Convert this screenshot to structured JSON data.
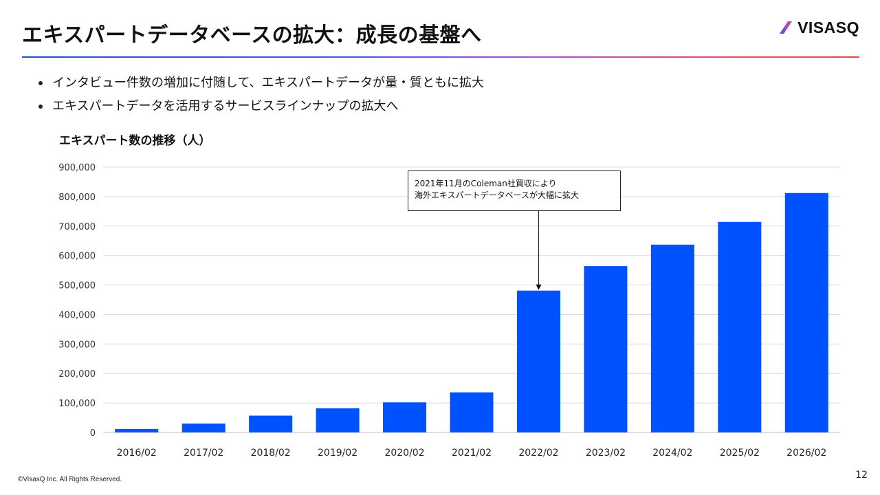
{
  "slide": {
    "title": "エキスパートデータベースの拡大：成長の基盤へ",
    "logo_text": "VISASQ",
    "bullets": [
      "インタビュー件数の増加に付随して、エキスパートデータが量・質ともに拡大",
      "エキスパートデータを活用するサービスラインナップの拡大へ"
    ],
    "copyright": "©VisasQ Inc. All Rights Reserved.",
    "page_number": "12"
  },
  "callout": {
    "line1": "2021年11月のColeman社買収により",
    "line2": "海外エキスパートデータベースが大幅に拡大",
    "target_category": "2022/02"
  },
  "colors": {
    "bar": "#0052ff",
    "grid": "#d9d9d9",
    "axis_text": "#333333"
  },
  "chart_data": {
    "type": "bar",
    "title": "エキスパート数の推移（人）",
    "xlabel": "",
    "ylabel": "",
    "categories": [
      "2016/02",
      "2017/02",
      "2018/02",
      "2019/02",
      "2020/02",
      "2021/02",
      "2022/02",
      "2023/02",
      "2024/02",
      "2025/02",
      "2026/02"
    ],
    "values": [
      12000,
      30000,
      57000,
      82000,
      102000,
      136000,
      481000,
      564000,
      637000,
      714000,
      812000
    ],
    "ylim": [
      0,
      900000
    ],
    "yticks": [
      0,
      100000,
      200000,
      300000,
      400000,
      500000,
      600000,
      700000,
      800000,
      900000
    ],
    "ytick_labels": [
      "0",
      "100,000",
      "200,000",
      "300,000",
      "400,000",
      "500,000",
      "600,000",
      "700,000",
      "800,000",
      "900,000"
    ],
    "grid": true,
    "legend": "none"
  }
}
